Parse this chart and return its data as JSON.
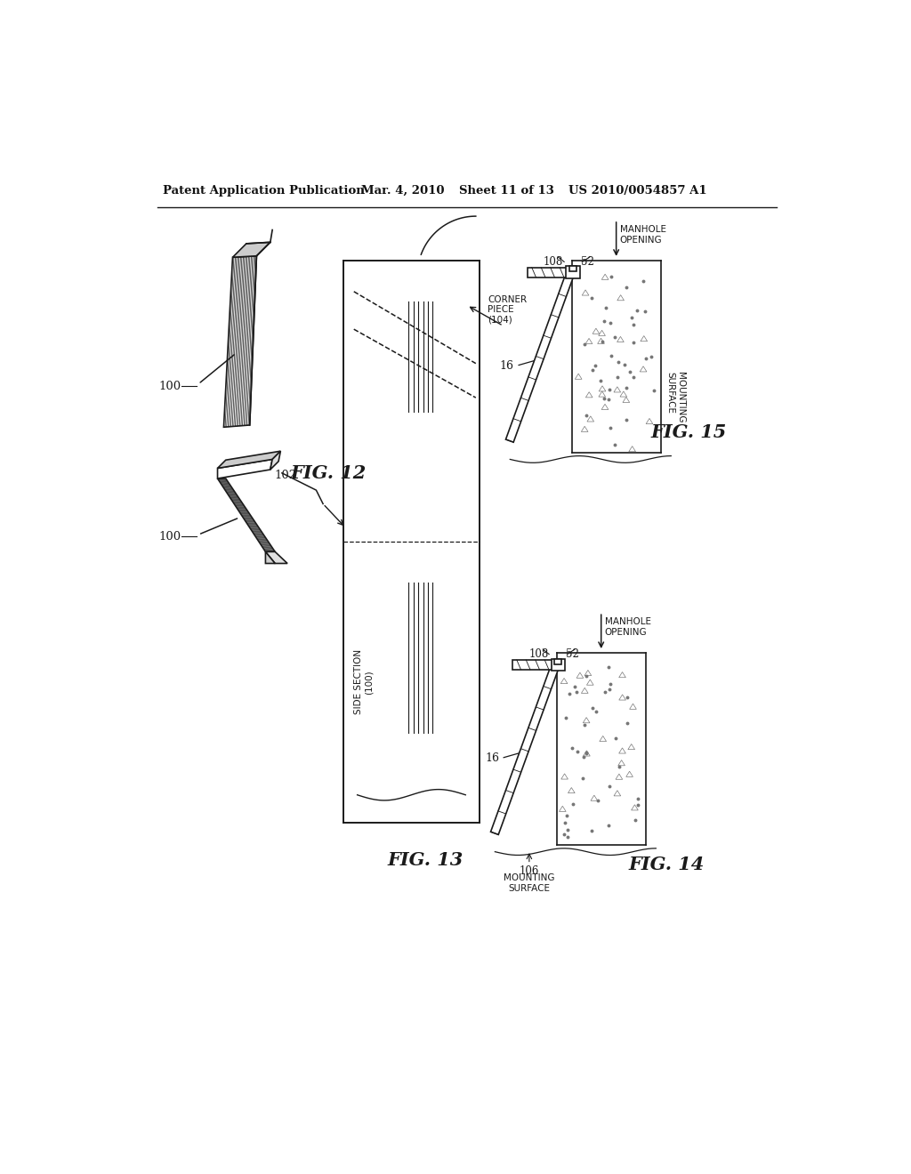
{
  "bg_color": "#ffffff",
  "line_color": "#1a1a1a",
  "header_text": "Patent Application Publication",
  "header_date": "Mar. 4, 2010",
  "header_sheet": "Sheet 11 of 13",
  "header_patent": "US 2010/0054857 A1",
  "fig12_label": "FIG. 12",
  "fig13_label": "FIG. 13",
  "fig14_label": "FIG. 14",
  "fig15_label": "FIG. 15",
  "label_100_top": "100",
  "label_100_bot": "100",
  "label_102": "102",
  "label_104": "CORNER\nPIECE\n(104)",
  "label_side_section": "SIDE SECTION\n(100)",
  "label_52": "52",
  "label_108": "108",
  "label_16_14": "16",
  "label_16_15": "16",
  "label_106": "106",
  "label_mounting": "MOUNTING\nSURFACE",
  "label_manhole": "MANHOLE\nOPENING"
}
